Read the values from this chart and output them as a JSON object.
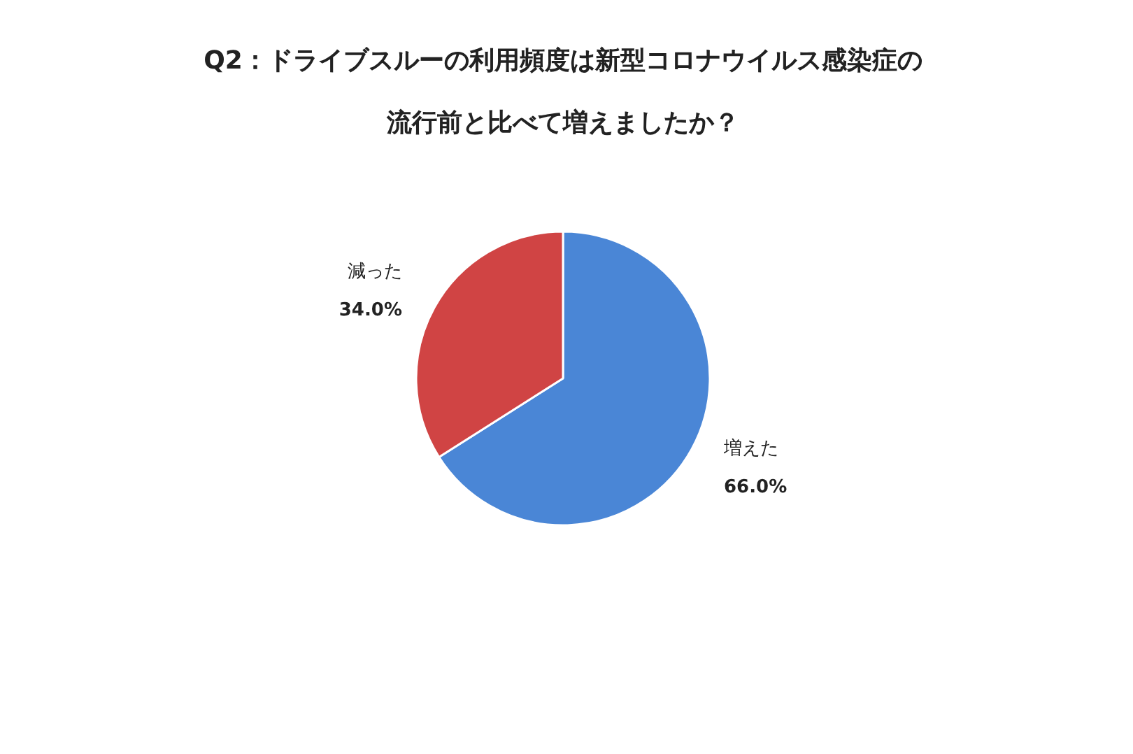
{
  "chart_data": {
    "type": "pie",
    "title": "Q2：ドライブスルーの利用頻度は新型コロナウイルス感染症の流行前と比べて増えましたか？",
    "categories": [
      "増えた",
      "減った"
    ],
    "values": [
      66.0,
      34.0
    ],
    "colors": [
      "#4a86d6",
      "#d04444"
    ],
    "value_labels": [
      "66.0%",
      "34.0%"
    ]
  }
}
